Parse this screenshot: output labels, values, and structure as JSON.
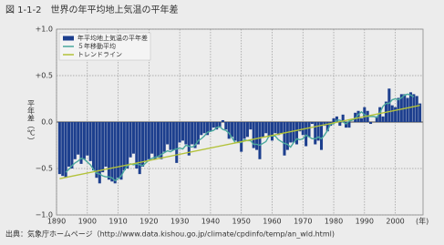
{
  "chart_data": {
    "type": "bar-line",
    "title": "図 1-1-2　世界の年平均地上気温の平年差",
    "y_label": "平年差（℃）",
    "x_label": "(年)",
    "source": "出典：気象庁ホームページ（http://www.data.kishou.go.jp/climate/cpdinfo/temp/an_wld.html)",
    "x": [
      1891,
      1892,
      1893,
      1894,
      1895,
      1896,
      1897,
      1898,
      1899,
      1900,
      1901,
      1902,
      1903,
      1904,
      1905,
      1906,
      1907,
      1908,
      1909,
      1910,
      1911,
      1912,
      1913,
      1914,
      1915,
      1916,
      1917,
      1918,
      1919,
      1920,
      1921,
      1922,
      1923,
      1924,
      1925,
      1926,
      1927,
      1928,
      1929,
      1930,
      1931,
      1932,
      1933,
      1934,
      1935,
      1936,
      1937,
      1938,
      1939,
      1940,
      1941,
      1942,
      1943,
      1944,
      1945,
      1946,
      1947,
      1948,
      1949,
      1950,
      1951,
      1952,
      1953,
      1954,
      1955,
      1956,
      1957,
      1958,
      1959,
      1960,
      1961,
      1962,
      1963,
      1964,
      1965,
      1966,
      1967,
      1968,
      1969,
      1970,
      1971,
      1972,
      1973,
      1974,
      1975,
      1976,
      1977,
      1978,
      1979,
      1980,
      1981,
      1982,
      1983,
      1984,
      1985,
      1986,
      1987,
      1988,
      1989,
      1990,
      1991,
      1992,
      1993,
      1994,
      1995,
      1996,
      1997,
      1998,
      1999,
      2000,
      2001,
      2002,
      2003,
      2004,
      2005,
      2006,
      2007,
      2008
    ],
    "series": [
      {
        "name": "年平均地上気温の平年差",
        "kind": "bar",
        "color": "#1d3f8e",
        "values": [
          -0.56,
          -0.58,
          -0.6,
          -0.48,
          -0.5,
          -0.4,
          -0.35,
          -0.45,
          -0.4,
          -0.36,
          -0.42,
          -0.52,
          -0.6,
          -0.66,
          -0.54,
          -0.48,
          -0.62,
          -0.64,
          -0.66,
          -0.6,
          -0.62,
          -0.52,
          -0.5,
          -0.38,
          -0.34,
          -0.5,
          -0.56,
          -0.48,
          -0.42,
          -0.4,
          -0.34,
          -0.4,
          -0.38,
          -0.4,
          -0.32,
          -0.24,
          -0.3,
          -0.3,
          -0.44,
          -0.22,
          -0.2,
          -0.24,
          -0.36,
          -0.24,
          -0.28,
          -0.24,
          -0.14,
          -0.12,
          -0.14,
          -0.1,
          -0.06,
          -0.08,
          -0.06,
          0.02,
          -0.08,
          -0.18,
          -0.16,
          -0.2,
          -0.22,
          -0.32,
          -0.18,
          -0.16,
          -0.08,
          -0.28,
          -0.3,
          -0.4,
          -0.16,
          -0.12,
          -0.16,
          -0.2,
          -0.12,
          -0.14,
          -0.12,
          -0.36,
          -0.3,
          -0.22,
          -0.22,
          -0.24,
          -0.1,
          -0.14,
          -0.26,
          -0.16,
          -0.02,
          -0.24,
          -0.2,
          -0.3,
          -0.04,
          -0.1,
          -0.04,
          0.04,
          0.06,
          -0.04,
          0.08,
          -0.06,
          -0.06,
          0.0,
          0.1,
          0.12,
          0.04,
          0.16,
          0.12,
          -0.02,
          0.0,
          0.06,
          0.16,
          0.06,
          0.22,
          0.36,
          0.18,
          0.16,
          0.26,
          0.3,
          0.3,
          0.26,
          0.32,
          0.3,
          0.28,
          0.2
        ]
      },
      {
        "name": "５年移動平均",
        "kind": "line",
        "color": "#4aa89c",
        "values": [
          null,
          null,
          -0.54,
          -0.51,
          -0.47,
          -0.44,
          -0.42,
          -0.39,
          -0.4,
          -0.43,
          -0.46,
          -0.51,
          -0.55,
          -0.56,
          -0.58,
          -0.59,
          -0.59,
          -0.6,
          -0.63,
          -0.61,
          -0.58,
          -0.52,
          -0.47,
          -0.45,
          -0.46,
          -0.45,
          -0.46,
          -0.47,
          -0.44,
          -0.41,
          -0.39,
          -0.38,
          -0.37,
          -0.35,
          -0.33,
          -0.31,
          -0.32,
          -0.3,
          -0.29,
          -0.28,
          -0.29,
          -0.25,
          -0.26,
          -0.27,
          -0.25,
          -0.2,
          -0.18,
          -0.15,
          -0.11,
          -0.1,
          -0.09,
          -0.06,
          -0.05,
          -0.08,
          -0.09,
          -0.12,
          -0.17,
          -0.22,
          -0.22,
          -0.22,
          -0.19,
          -0.2,
          -0.2,
          -0.24,
          -0.24,
          -0.25,
          -0.23,
          -0.21,
          -0.15,
          -0.15,
          -0.15,
          -0.19,
          -0.21,
          -0.23,
          -0.24,
          -0.27,
          -0.22,
          -0.18,
          -0.19,
          -0.18,
          -0.14,
          -0.16,
          -0.18,
          -0.18,
          -0.16,
          -0.18,
          -0.14,
          -0.09,
          -0.02,
          -0.02,
          0.02,
          0.02,
          0.0,
          -0.02,
          0.01,
          0.02,
          0.04,
          0.08,
          0.11,
          0.08,
          0.06,
          0.06,
          0.06,
          0.05,
          0.1,
          0.17,
          0.2,
          0.2,
          0.24,
          0.25,
          0.24,
          0.26,
          0.29,
          0.3,
          0.29,
          0.27,
          null,
          null
        ]
      },
      {
        "name": "トレンドライン",
        "kind": "line",
        "color": "#b3c23a",
        "x": [
          1891,
          2008
        ],
        "values": [
          -0.61,
          0.18
        ]
      }
    ],
    "xlim": [
      1890,
      2009
    ],
    "xticks": [
      1890,
      1900,
      1910,
      1920,
      1930,
      1940,
      1950,
      1960,
      1970,
      1980,
      1990,
      2000
    ],
    "ylim": [
      -1.0,
      1.0
    ],
    "yticks": [
      {
        "value": -1.0,
        "label": "−1.0"
      },
      {
        "value": -0.5,
        "label": "−0.5"
      },
      {
        "value": 0,
        "label": "0.0"
      },
      {
        "value": 0.5,
        "label": "+0.5"
      },
      {
        "value": 1.0,
        "label": "+1.0"
      }
    ],
    "grid": true,
    "legend": "upper-left"
  }
}
